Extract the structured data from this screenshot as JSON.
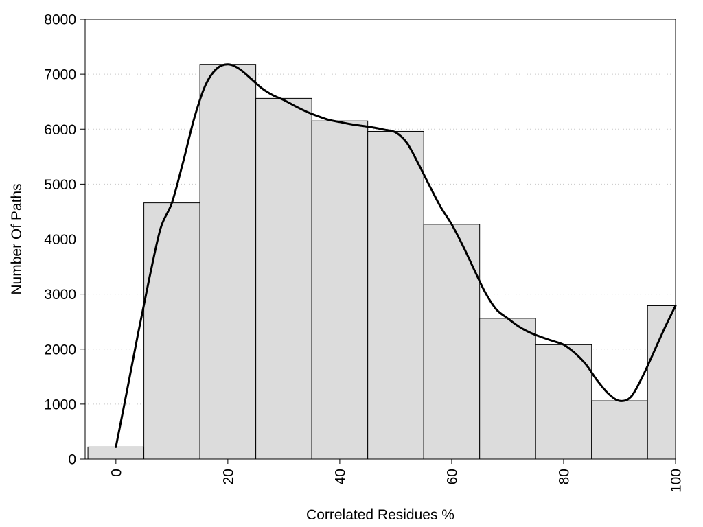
{
  "chart_data": {
    "type": "bar",
    "title": "",
    "xlabel": "Correlated Residues %",
    "ylabel": "Number Of Paths",
    "xlim": [
      -5.5,
      100
    ],
    "ylim": [
      0,
      8000
    ],
    "x_ticks": [
      0,
      20,
      40,
      60,
      80,
      100
    ],
    "y_ticks": [
      0,
      1000,
      2000,
      3000,
      4000,
      5000,
      6000,
      7000,
      8000
    ],
    "grid": "horizontal dotted",
    "bar_width": 10,
    "categories": [
      0,
      10,
      20,
      30,
      40,
      50,
      60,
      70,
      80,
      90,
      100
    ],
    "values": [
      220,
      4660,
      7180,
      6560,
      6150,
      5960,
      4270,
      2560,
      2080,
      1060,
      2790
    ],
    "curve": {
      "x": [
        0,
        2,
        4,
        6,
        8,
        10,
        12,
        14,
        16,
        18,
        20,
        22,
        24,
        26,
        28,
        30,
        32,
        34,
        36,
        38,
        40,
        42,
        44,
        46,
        48,
        50,
        52,
        54,
        56,
        58,
        60,
        62,
        64,
        66,
        68,
        70,
        72,
        74,
        76,
        78,
        80,
        82,
        84,
        86,
        88,
        90,
        92,
        94,
        96,
        98,
        100
      ],
      "y": [
        220,
        1250,
        2300,
        3300,
        4200,
        4660,
        5400,
        6200,
        6800,
        7100,
        7180,
        7100,
        6930,
        6750,
        6620,
        6530,
        6420,
        6320,
        6240,
        6170,
        6130,
        6090,
        6060,
        6030,
        5990,
        5940,
        5750,
        5380,
        4980,
        4590,
        4270,
        3880,
        3450,
        3030,
        2720,
        2560,
        2410,
        2300,
        2220,
        2150,
        2080,
        1930,
        1720,
        1430,
        1190,
        1060,
        1130,
        1480,
        1920,
        2370,
        2790
      ]
    },
    "colors": {
      "bar": "#dcdcdc",
      "line": "#000000"
    }
  }
}
